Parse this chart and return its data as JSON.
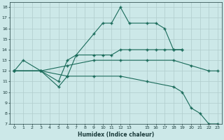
{
  "xlabel": "Humidex (Indice chaleur)",
  "bg_color": "#cce8e8",
  "line_color": "#1a6b5a",
  "grid_color": "#b0cccc",
  "xlim": [
    -0.5,
    23.5
  ],
  "ylim": [
    7,
    18.5
  ],
  "xtick_vals": [
    0,
    1,
    2,
    3,
    4,
    5,
    6,
    7,
    8,
    9,
    10,
    11,
    12,
    13,
    15,
    16,
    17,
    18,
    19,
    20,
    21,
    22,
    23
  ],
  "ytick_vals": [
    7,
    8,
    9,
    10,
    11,
    12,
    13,
    14,
    15,
    16,
    17,
    18
  ],
  "series": [
    {
      "x": [
        0,
        1,
        3,
        5,
        6,
        7,
        9,
        10,
        11,
        12,
        13,
        15,
        16,
        17,
        18,
        19
      ],
      "y": [
        12,
        13,
        12,
        10.5,
        11.5,
        13.5,
        15.5,
        16.5,
        16.5,
        18,
        16.5,
        16.5,
        16.5,
        16,
        14,
        14
      ]
    },
    {
      "x": [
        0,
        3,
        5,
        6,
        7,
        9,
        10,
        11,
        12,
        13,
        15,
        16,
        17,
        18,
        19
      ],
      "y": [
        12,
        12,
        11,
        13,
        13.5,
        13.5,
        13.5,
        13.5,
        14,
        14,
        14,
        14,
        14,
        14,
        14
      ]
    },
    {
      "x": [
        0,
        3,
        6,
        9,
        12,
        15,
        18,
        20,
        22,
        23
      ],
      "y": [
        12,
        12,
        12.5,
        13,
        13,
        13,
        13,
        12.5,
        12,
        12
      ]
    },
    {
      "x": [
        0,
        3,
        6,
        9,
        12,
        15,
        18,
        19,
        20,
        21,
        22,
        23
      ],
      "y": [
        12,
        12,
        11.5,
        11.5,
        11.5,
        11,
        10.5,
        10,
        8.5,
        8,
        7,
        7
      ]
    }
  ]
}
